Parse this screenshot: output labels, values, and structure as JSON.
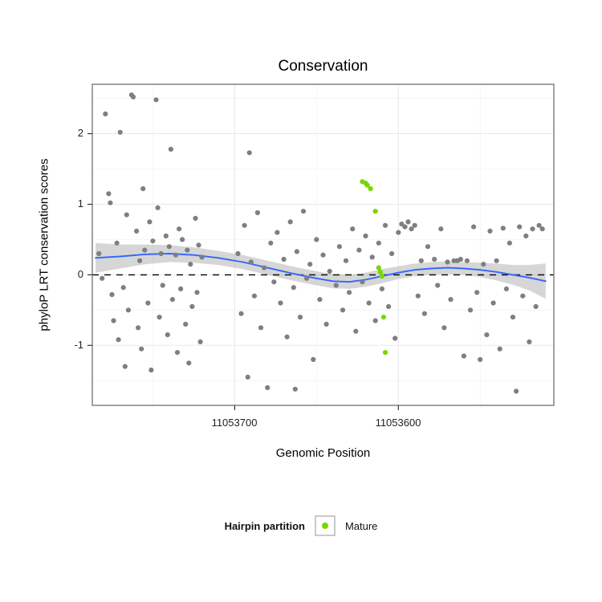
{
  "chart_data": {
    "type": "scatter",
    "title": "Conservation",
    "xlabel": "Genomic Position",
    "ylabel": "phyloP LRT conservation scores",
    "x_domain": [
      11053787,
      11053505
    ],
    "x_axis_reversed": true,
    "ylim": [
      -1.85,
      2.7
    ],
    "x_ticks": [
      11053700,
      11053600
    ],
    "x_tick_labels": [
      "11053700",
      "11053600"
    ],
    "y_ticks": [
      2,
      1,
      0,
      -1
    ],
    "y_tick_labels": [
      "2",
      "1",
      "0",
      "-1"
    ],
    "minor_x": [
      11053750,
      11053650,
      11053550
    ],
    "minor_y": [
      2.5,
      1.5,
      0.5,
      -0.5,
      -1.5
    ],
    "grid_major": "#e8e8e8",
    "grid_minor": "#f4f4f4",
    "panel_bg": "#ffffff",
    "panel_border": "#7a7a7a",
    "reference_line": {
      "y": 0,
      "style": "dashed",
      "color": "#000000"
    },
    "ribbon_color": "#9e9e9e",
    "smooth": {
      "color": "#3366FF",
      "x": [
        11053785,
        11053770,
        11053755,
        11053740,
        11053725,
        11053710,
        11053695,
        11053680,
        11053665,
        11053650,
        11053640,
        11053630,
        11053620,
        11053610,
        11053600,
        11053590,
        11053580,
        11053570,
        11053560,
        11053550,
        11053540,
        11053530,
        11053520,
        11053510
      ],
      "y": [
        0.24,
        0.26,
        0.29,
        0.3,
        0.28,
        0.24,
        0.18,
        0.1,
        0.02,
        -0.05,
        -0.09,
        -0.1,
        -0.07,
        -0.02,
        0.03,
        0.07,
        0.09,
        0.1,
        0.09,
        0.07,
        0.04,
        0.0,
        -0.04,
        -0.09
      ],
      "se": [
        0.21,
        0.17,
        0.14,
        0.12,
        0.11,
        0.1,
        0.1,
        0.1,
        0.1,
        0.1,
        0.1,
        0.1,
        0.1,
        0.1,
        0.09,
        0.09,
        0.09,
        0.09,
        0.09,
        0.1,
        0.12,
        0.14,
        0.18,
        0.25
      ]
    },
    "points": {
      "label": "",
      "color": "#7f7f7f",
      "x": [
        11053783,
        11053781,
        11053779,
        11053777,
        11053776,
        11053775,
        11053774,
        11053772,
        11053771,
        11053770,
        11053768,
        11053767,
        11053766,
        11053765,
        11053763,
        11053762,
        11053760,
        11053759,
        11053758,
        11053757,
        11053756,
        11053755,
        11053753,
        11053752,
        11053751,
        11053750,
        11053748,
        11053747,
        11053746,
        11053745,
        11053744,
        11053742,
        11053741,
        11053740,
        11053739,
        11053738,
        11053736,
        11053735,
        11053734,
        11053733,
        11053732,
        11053730,
        11053729,
        11053728,
        11053727,
        11053726,
        11053724,
        11053723,
        11053722,
        11053721,
        11053720,
        11053698,
        11053696,
        11053694,
        11053692,
        11053691,
        11053690,
        11053688,
        11053686,
        11053684,
        11053682,
        11053680,
        11053678,
        11053676,
        11053674,
        11053672,
        11053670,
        11053668,
        11053666,
        11053664,
        11053663,
        11053662,
        11053660,
        11053658,
        11053656,
        11053654,
        11053652,
        11053650,
        11053648,
        11053646,
        11053644,
        11053642,
        11053638,
        11053636,
        11053634,
        11053632,
        11053630,
        11053628,
        11053626,
        11053624,
        11053622,
        11053620,
        11053618,
        11053616,
        11053614,
        11053612,
        11053610,
        11053608,
        11053606,
        11053604,
        11053602,
        11053600,
        11053598,
        11053596,
        11053594,
        11053592,
        11053590,
        11053588,
        11053586,
        11053584,
        11053582,
        11053578,
        11053576,
        11053574,
        11053572,
        11053570,
        11053568,
        11053566,
        11053564,
        11053562,
        11053560,
        11053558,
        11053556,
        11053554,
        11053552,
        11053550,
        11053548,
        11053546,
        11053544,
        11053542,
        11053540,
        11053538,
        11053536,
        11053534,
        11053532,
        11053530,
        11053528,
        11053526,
        11053524,
        11053522,
        11053520,
        11053518,
        11053516,
        11053514,
        11053512
      ],
      "y": [
        0.3,
        -0.05,
        2.28,
        1.15,
        1.02,
        -0.28,
        -0.65,
        0.45,
        -0.92,
        2.02,
        -0.18,
        -1.3,
        0.85,
        -0.5,
        2.55,
        2.52,
        0.62,
        -0.75,
        0.2,
        -1.05,
        1.22,
        0.35,
        -0.4,
        0.75,
        -1.35,
        0.48,
        2.48,
        0.95,
        -0.6,
        0.3,
        -0.15,
        0.55,
        -0.85,
        0.4,
        1.78,
        -0.35,
        0.28,
        -1.1,
        0.65,
        -0.2,
        0.5,
        -0.7,
        0.35,
        -1.25,
        0.15,
        -0.45,
        0.8,
        -0.25,
        0.42,
        -0.95,
        0.25,
        0.3,
        -0.55,
        0.7,
        -1.45,
        1.73,
        0.18,
        -0.3,
        0.88,
        -0.75,
        0.1,
        -1.6,
        0.45,
        -0.1,
        0.6,
        -0.4,
        0.22,
        -0.88,
        0.75,
        -0.18,
        -1.62,
        0.33,
        -0.6,
        0.9,
        -0.05,
        0.15,
        -1.2,
        0.5,
        -0.35,
        0.28,
        -0.7,
        0.05,
        -0.15,
        0.4,
        -0.5,
        0.2,
        -0.25,
        0.65,
        -0.8,
        0.35,
        -0.1,
        0.55,
        -0.4,
        0.25,
        -0.65,
        0.45,
        -0.2,
        0.7,
        -0.45,
        0.3,
        -0.9,
        0.6,
        0.72,
        0.68,
        0.75,
        0.65,
        0.7,
        -0.3,
        0.2,
        -0.55,
        0.4,
        0.22,
        -0.15,
        0.65,
        -0.75,
        0.18,
        -0.35,
        0.2,
        0.2,
        0.22,
        -1.15,
        0.2,
        -0.5,
        0.68,
        -0.25,
        -1.2,
        0.15,
        -0.85,
        0.62,
        -0.4,
        0.2,
        -1.05,
        0.66,
        -0.2,
        0.45,
        -0.6,
        -1.65,
        0.68,
        -0.3,
        0.55,
        -0.95,
        0.65,
        -0.45,
        0.7,
        0.65
      ]
    },
    "mature_points": {
      "label": "Mature",
      "color": "#76d700",
      "x": [
        11053622,
        11053620,
        11053619,
        11053617,
        11053614,
        11053612,
        11053611,
        11053610,
        11053609,
        11053608
      ],
      "y": [
        1.32,
        1.3,
        1.27,
        1.22,
        0.9,
        0.1,
        0.04,
        -0.02,
        -0.6,
        -1.1
      ]
    },
    "legend": {
      "title": "Hairpin partition",
      "position": "bottom",
      "entries": [
        {
          "label": "Mature",
          "color": "#76d700"
        }
      ]
    }
  }
}
